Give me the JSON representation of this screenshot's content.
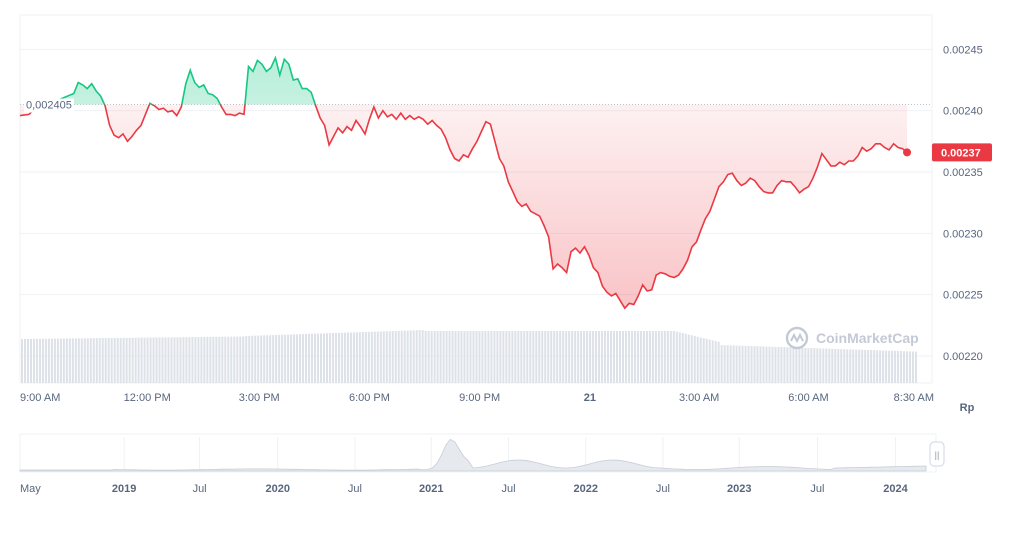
{
  "chart_data": {
    "type": "line",
    "currency_label": "Rp",
    "reference_value_label": "0,002405",
    "reference_value": 0.002405,
    "current_price_label": "0.00237",
    "current_price": 0.002366,
    "ylim": [
      0.002178,
      0.002478
    ],
    "y_ticks": [
      {
        "value": 0.00245,
        "label": "0.00245"
      },
      {
        "value": 0.0024,
        "label": "0.00240"
      },
      {
        "value": 0.00235,
        "label": "0.00235"
      },
      {
        "value": 0.0023,
        "label": "0.00230"
      },
      {
        "value": 0.00225,
        "label": "0.00225"
      },
      {
        "value": 0.0022,
        "label": "0.00220"
      }
    ],
    "x_ticks": [
      {
        "label": "9:00 AM",
        "t": 0.0,
        "bold": false
      },
      {
        "label": "12:00 PM",
        "t": 0.142,
        "bold": false
      },
      {
        "label": "3:00 PM",
        "t": 0.267,
        "bold": false
      },
      {
        "label": "6:00 PM",
        "t": 0.39,
        "bold": false
      },
      {
        "label": "9:00 PM",
        "t": 0.513,
        "bold": false
      },
      {
        "label": "21",
        "t": 0.636,
        "bold": true
      },
      {
        "label": "3:00 AM",
        "t": 0.758,
        "bold": false
      },
      {
        "label": "6:00 AM",
        "t": 0.88,
        "bold": false
      },
      {
        "label": "8:30 AM",
        "t": 0.982,
        "bold": false
      }
    ],
    "up_color": "#16c784",
    "down_color": "#ea3943",
    "series": [
      {
        "values": [
          [
            0.0,
            0.002396
          ],
          [
            0.01,
            0.002397
          ],
          [
            0.02,
            0.002404
          ],
          [
            0.03,
            0.002403
          ],
          [
            0.04,
            0.002408
          ],
          [
            0.06,
            0.002414
          ],
          [
            0.065,
            0.002423
          ],
          [
            0.07,
            0.002421
          ],
          [
            0.075,
            0.002418
          ],
          [
            0.08,
            0.002422
          ],
          [
            0.085,
            0.002416
          ],
          [
            0.09,
            0.002412
          ],
          [
            0.095,
            0.002404
          ],
          [
            0.1,
            0.002388
          ],
          [
            0.105,
            0.00238
          ],
          [
            0.11,
            0.002378
          ],
          [
            0.115,
            0.002381
          ],
          [
            0.12,
            0.002375
          ],
          [
            0.125,
            0.002379
          ],
          [
            0.13,
            0.002384
          ],
          [
            0.135,
            0.002388
          ],
          [
            0.14,
            0.002397
          ],
          [
            0.145,
            0.002406
          ],
          [
            0.15,
            0.002404
          ],
          [
            0.155,
            0.002401
          ],
          [
            0.16,
            0.002402
          ],
          [
            0.165,
            0.002399
          ],
          [
            0.17,
            0.0024
          ],
          [
            0.175,
            0.002396
          ],
          [
            0.18,
            0.002403
          ],
          [
            0.185,
            0.002422
          ],
          [
            0.19,
            0.002433
          ],
          [
            0.195,
            0.002423
          ],
          [
            0.2,
            0.002419
          ],
          [
            0.205,
            0.002421
          ],
          [
            0.21,
            0.002414
          ],
          [
            0.215,
            0.002413
          ],
          [
            0.22,
            0.00241
          ],
          [
            0.225,
            0.002403
          ],
          [
            0.23,
            0.002397
          ],
          [
            0.235,
            0.002397
          ],
          [
            0.24,
            0.002396
          ],
          [
            0.245,
            0.002398
          ],
          [
            0.25,
            0.002397
          ],
          [
            0.255,
            0.002436
          ],
          [
            0.26,
            0.002432
          ],
          [
            0.265,
            0.002441
          ],
          [
            0.27,
            0.002438
          ],
          [
            0.275,
            0.002432
          ],
          [
            0.28,
            0.002435
          ],
          [
            0.285,
            0.002443
          ],
          [
            0.29,
            0.002429
          ],
          [
            0.295,
            0.002442
          ],
          [
            0.3,
            0.002438
          ],
          [
            0.305,
            0.002425
          ],
          [
            0.31,
            0.002426
          ],
          [
            0.315,
            0.002418
          ],
          [
            0.32,
            0.002418
          ],
          [
            0.325,
            0.002415
          ],
          [
            0.33,
            0.002404
          ],
          [
            0.335,
            0.002394
          ],
          [
            0.34,
            0.002388
          ],
          [
            0.345,
            0.002372
          ],
          [
            0.35,
            0.002379
          ],
          [
            0.355,
            0.002386
          ],
          [
            0.36,
            0.002382
          ],
          [
            0.365,
            0.002387
          ],
          [
            0.37,
            0.002384
          ],
          [
            0.375,
            0.002392
          ],
          [
            0.38,
            0.002387
          ],
          [
            0.385,
            0.002381
          ],
          [
            0.39,
            0.002393
          ],
          [
            0.395,
            0.002403
          ],
          [
            0.4,
            0.002394
          ],
          [
            0.405,
            0.0024
          ],
          [
            0.41,
            0.002395
          ],
          [
            0.415,
            0.002397
          ],
          [
            0.42,
            0.002393
          ],
          [
            0.425,
            0.002398
          ],
          [
            0.43,
            0.002393
          ],
          [
            0.435,
            0.002396
          ],
          [
            0.44,
            0.002393
          ],
          [
            0.445,
            0.002395
          ],
          [
            0.45,
            0.002393
          ],
          [
            0.455,
            0.002389
          ],
          [
            0.46,
            0.002392
          ],
          [
            0.465,
            0.002388
          ],
          [
            0.47,
            0.002385
          ],
          [
            0.475,
            0.002378
          ],
          [
            0.48,
            0.002368
          ],
          [
            0.485,
            0.002361
          ],
          [
            0.49,
            0.002359
          ],
          [
            0.495,
            0.002364
          ],
          [
            0.5,
            0.002362
          ],
          [
            0.505,
            0.002369
          ],
          [
            0.51,
            0.002375
          ],
          [
            0.515,
            0.002383
          ],
          [
            0.52,
            0.002391
          ],
          [
            0.525,
            0.002389
          ],
          [
            0.53,
            0.002375
          ],
          [
            0.535,
            0.002361
          ],
          [
            0.54,
            0.002355
          ],
          [
            0.545,
            0.002342
          ],
          [
            0.55,
            0.002334
          ],
          [
            0.555,
            0.002326
          ],
          [
            0.56,
            0.002322
          ],
          [
            0.565,
            0.002324
          ],
          [
            0.57,
            0.002318
          ],
          [
            0.575,
            0.002316
          ],
          [
            0.58,
            0.002314
          ],
          [
            0.585,
            0.002306
          ],
          [
            0.59,
            0.002297
          ],
          [
            0.595,
            0.002271
          ],
          [
            0.6,
            0.002275
          ],
          [
            0.605,
            0.002272
          ],
          [
            0.61,
            0.002268
          ],
          [
            0.615,
            0.002285
          ],
          [
            0.62,
            0.002288
          ],
          [
            0.625,
            0.002284
          ],
          [
            0.63,
            0.002289
          ],
          [
            0.635,
            0.002282
          ],
          [
            0.64,
            0.002272
          ],
          [
            0.645,
            0.002268
          ],
          [
            0.65,
            0.002257
          ],
          [
            0.655,
            0.002252
          ],
          [
            0.66,
            0.002249
          ],
          [
            0.665,
            0.002251
          ],
          [
            0.67,
            0.002245
          ],
          [
            0.675,
            0.002239
          ],
          [
            0.68,
            0.002243
          ],
          [
            0.685,
            0.002242
          ],
          [
            0.69,
            0.002249
          ],
          [
            0.695,
            0.002258
          ],
          [
            0.7,
            0.002253
          ],
          [
            0.705,
            0.002254
          ],
          [
            0.71,
            0.002266
          ],
          [
            0.715,
            0.002268
          ],
          [
            0.72,
            0.002267
          ],
          [
            0.725,
            0.002265
          ],
          [
            0.73,
            0.002264
          ],
          [
            0.735,
            0.002266
          ],
          [
            0.74,
            0.002271
          ],
          [
            0.745,
            0.002278
          ],
          [
            0.75,
            0.002289
          ],
          [
            0.755,
            0.002293
          ],
          [
            0.76,
            0.002303
          ],
          [
            0.765,
            0.002312
          ],
          [
            0.77,
            0.002318
          ],
          [
            0.775,
            0.002328
          ],
          [
            0.78,
            0.002338
          ],
          [
            0.785,
            0.002342
          ],
          [
            0.79,
            0.002348
          ],
          [
            0.795,
            0.002349
          ],
          [
            0.8,
            0.002343
          ],
          [
            0.805,
            0.002339
          ],
          [
            0.81,
            0.002341
          ],
          [
            0.815,
            0.002345
          ],
          [
            0.82,
            0.002343
          ],
          [
            0.825,
            0.002338
          ],
          [
            0.83,
            0.002334
          ],
          [
            0.835,
            0.002333
          ],
          [
            0.84,
            0.002333
          ],
          [
            0.845,
            0.002339
          ],
          [
            0.85,
            0.002343
          ],
          [
            0.855,
            0.002342
          ],
          [
            0.86,
            0.002342
          ],
          [
            0.865,
            0.002338
          ],
          [
            0.87,
            0.002333
          ],
          [
            0.875,
            0.002336
          ],
          [
            0.88,
            0.002338
          ],
          [
            0.885,
            0.002345
          ],
          [
            0.89,
            0.002354
          ],
          [
            0.895,
            0.002365
          ],
          [
            0.9,
            0.00236
          ],
          [
            0.905,
            0.002355
          ],
          [
            0.91,
            0.002355
          ],
          [
            0.915,
            0.002358
          ],
          [
            0.92,
            0.002356
          ],
          [
            0.925,
            0.002359
          ],
          [
            0.93,
            0.002359
          ],
          [
            0.935,
            0.002363
          ],
          [
            0.94,
            0.00237
          ],
          [
            0.945,
            0.002367
          ],
          [
            0.95,
            0.002369
          ],
          [
            0.955,
            0.002373
          ],
          [
            0.96,
            0.002373
          ],
          [
            0.965,
            0.00237
          ],
          [
            0.97,
            0.002368
          ],
          [
            0.975,
            0.002373
          ],
          [
            0.98,
            0.00237
          ],
          [
            0.985,
            0.002369
          ],
          [
            0.99,
            0.002366
          ]
        ]
      }
    ],
    "navigator": {
      "labels": [
        {
          "label": "May",
          "t": 0.0,
          "bold": false
        },
        {
          "label": "2019",
          "t": 0.116,
          "bold": true
        },
        {
          "label": "Jul",
          "t": 0.2,
          "bold": false
        },
        {
          "label": "2020",
          "t": 0.287,
          "bold": true
        },
        {
          "label": "Jul",
          "t": 0.373,
          "bold": false
        },
        {
          "label": "2021",
          "t": 0.458,
          "bold": true
        },
        {
          "label": "Jul",
          "t": 0.544,
          "bold": false
        },
        {
          "label": "2022",
          "t": 0.63,
          "bold": true
        },
        {
          "label": "Jul",
          "t": 0.716,
          "bold": false
        },
        {
          "label": "2023",
          "t": 0.801,
          "bold": true
        },
        {
          "label": "Jul",
          "t": 0.888,
          "bold": false
        },
        {
          "label": "2024",
          "t": 0.975,
          "bold": true
        }
      ],
      "handle_glyph": "||"
    }
  },
  "watermark": {
    "text": "CoinMarketCap",
    "icon": "coinmarketcap-logo-icon"
  }
}
